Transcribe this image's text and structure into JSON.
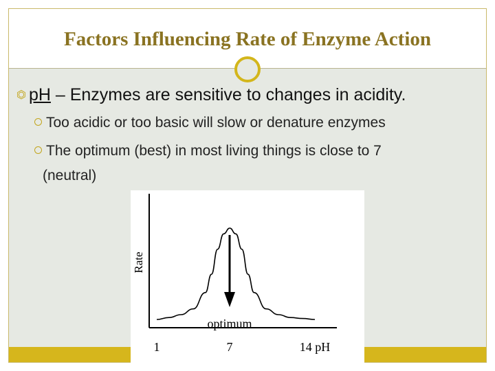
{
  "slide": {
    "title": "Factors Influencing Rate of Enzyme Action",
    "bullet": {
      "term": "pH",
      "text": " – Enzymes are sensitive to changes in acidity."
    },
    "subbullets": [
      "Too acidic or too basic will slow or denature enzymes",
      "The optimum (best) in most living things is close to 7",
      "(neutral)"
    ]
  },
  "chart_data": {
    "type": "line",
    "title": "",
    "xlabel": "pH",
    "ylabel": "Rate",
    "x_ticks": [
      "1",
      "7",
      "14 pH"
    ],
    "xlim": [
      1,
      14
    ],
    "annotations": [
      {
        "text": "optimum",
        "x": 7
      }
    ],
    "series": [
      {
        "x": [
          1,
          2,
          3,
          4,
          5,
          5.5,
          6,
          6.5,
          7,
          7.5,
          8,
          8.5,
          9,
          10,
          11,
          12,
          13,
          14
        ],
        "values": [
          0.05,
          0.07,
          0.1,
          0.16,
          0.33,
          0.52,
          0.78,
          0.94,
          1.0,
          0.94,
          0.78,
          0.52,
          0.33,
          0.16,
          0.1,
          0.07,
          0.06,
          0.05
        ]
      }
    ],
    "grid": false
  }
}
